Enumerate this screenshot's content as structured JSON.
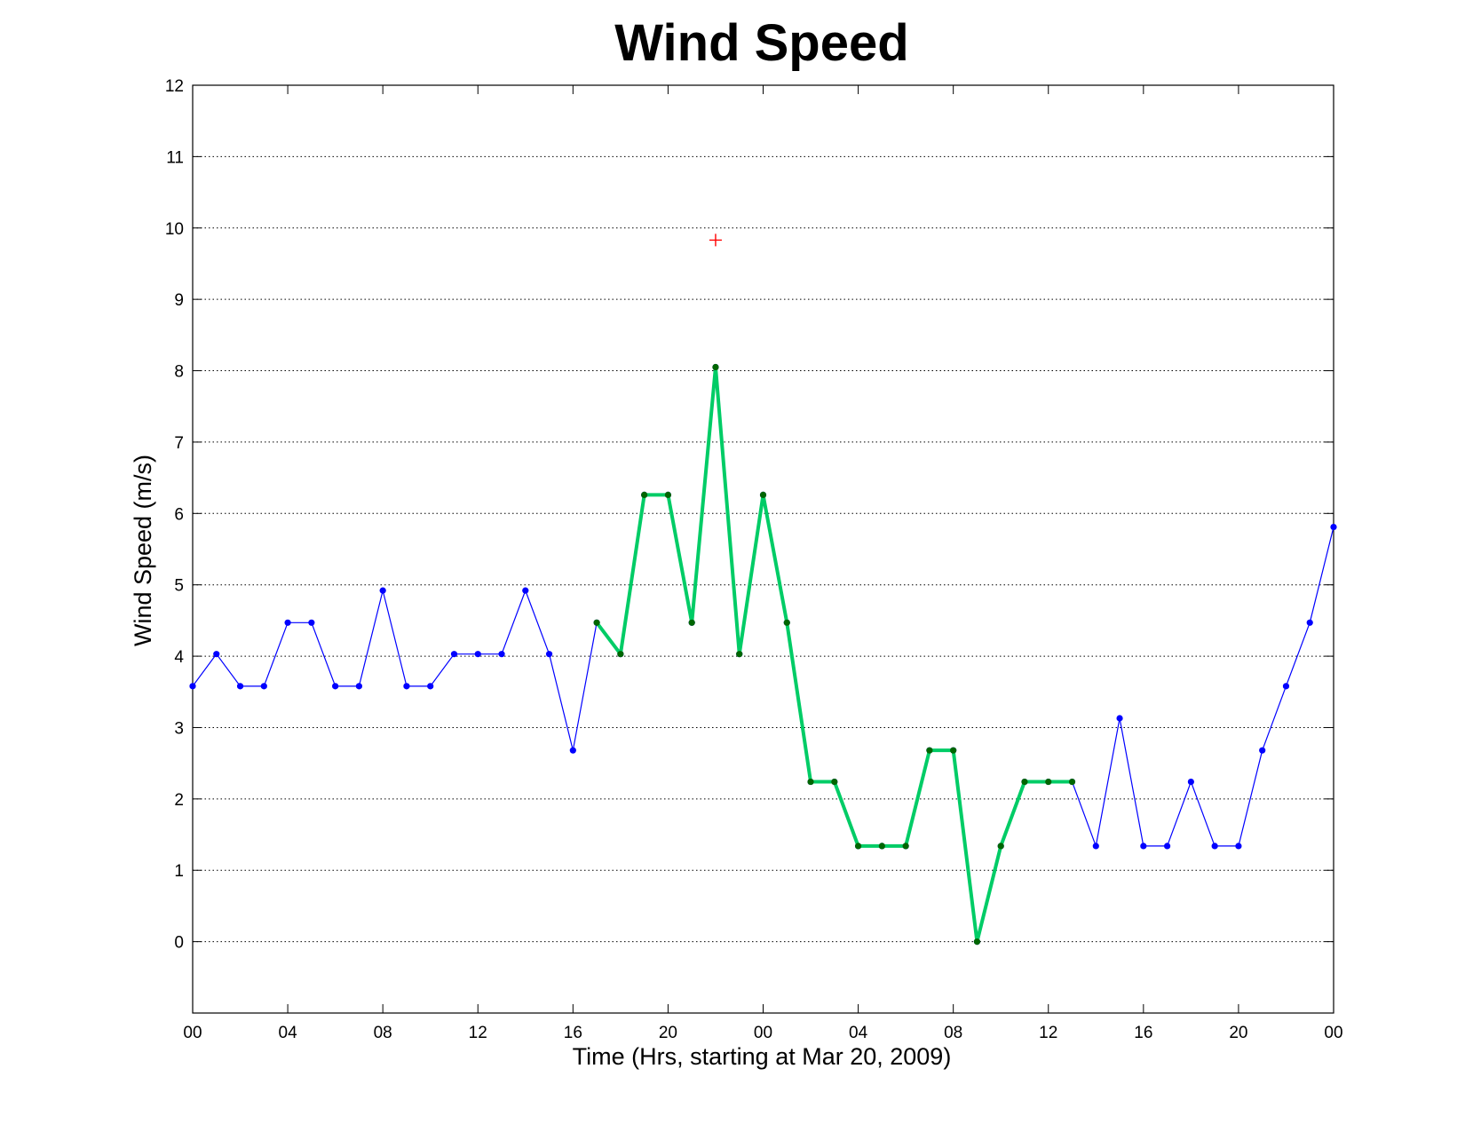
{
  "chart_data": {
    "type": "line",
    "title": "Wind Speed",
    "xlabel": "Time (Hrs, starting at Mar 20, 2009)",
    "ylabel": "Wind Speed (m/s)",
    "xlim": [
      0,
      48
    ],
    "ylim": [
      -1,
      12
    ],
    "x_ticks": [
      0,
      4,
      8,
      12,
      16,
      20,
      24,
      28,
      32,
      36,
      40,
      44,
      48
    ],
    "x_tick_labels": [
      "00",
      "04",
      "08",
      "12",
      "16",
      "20",
      "00",
      "04",
      "08",
      "12",
      "16",
      "20",
      "00"
    ],
    "y_ticks": [
      0,
      1,
      2,
      3,
      4,
      5,
      6,
      7,
      8,
      9,
      10,
      11,
      12
    ],
    "grid": "horizontal dotted",
    "series": [
      {
        "color": "#0000ff",
        "marker": "dot",
        "x": [
          0,
          1,
          2,
          3,
          4,
          5,
          6,
          7,
          8,
          9,
          10,
          11,
          12,
          13,
          14,
          15,
          16,
          17,
          18,
          19,
          20,
          21,
          22,
          23,
          24,
          25,
          26,
          27,
          28,
          29,
          30,
          31,
          32,
          33,
          34,
          35,
          36,
          37,
          38,
          39,
          40,
          41,
          42,
          43,
          44,
          45,
          46,
          47,
          48
        ],
        "y": [
          3.58,
          4.03,
          3.58,
          3.58,
          4.47,
          4.47,
          3.58,
          3.58,
          4.92,
          3.58,
          3.58,
          4.03,
          4.03,
          4.03,
          4.92,
          4.03,
          2.68,
          4.47,
          4.03,
          6.26,
          6.26,
          4.47,
          8.05,
          4.03,
          6.26,
          4.47,
          2.24,
          2.24,
          1.34,
          1.34,
          1.34,
          2.68,
          2.68,
          0,
          1.34,
          2.24,
          2.24,
          2.24,
          1.34,
          3.13,
          1.34,
          1.34,
          2.24,
          1.34,
          1.34,
          2.68,
          3.58,
          4.47,
          5.81
        ]
      },
      {
        "color": "#00cc66",
        "marker": "dot",
        "marker_color": "#006600",
        "x": [
          17,
          18,
          19,
          20,
          21,
          22,
          23,
          24,
          25,
          26,
          27,
          28,
          29,
          30,
          31,
          32,
          33,
          34,
          35,
          36,
          37
        ],
        "y": [
          4.47,
          4.03,
          6.26,
          6.26,
          4.47,
          8.05,
          4.03,
          6.26,
          4.47,
          2.24,
          2.24,
          1.34,
          1.34,
          1.34,
          2.68,
          2.68,
          0,
          1.34,
          2.24,
          2.24,
          2.24
        ]
      },
      {
        "color": "#ff0000",
        "marker": "plus",
        "x": [
          22
        ],
        "y": [
          9.83
        ]
      }
    ]
  }
}
